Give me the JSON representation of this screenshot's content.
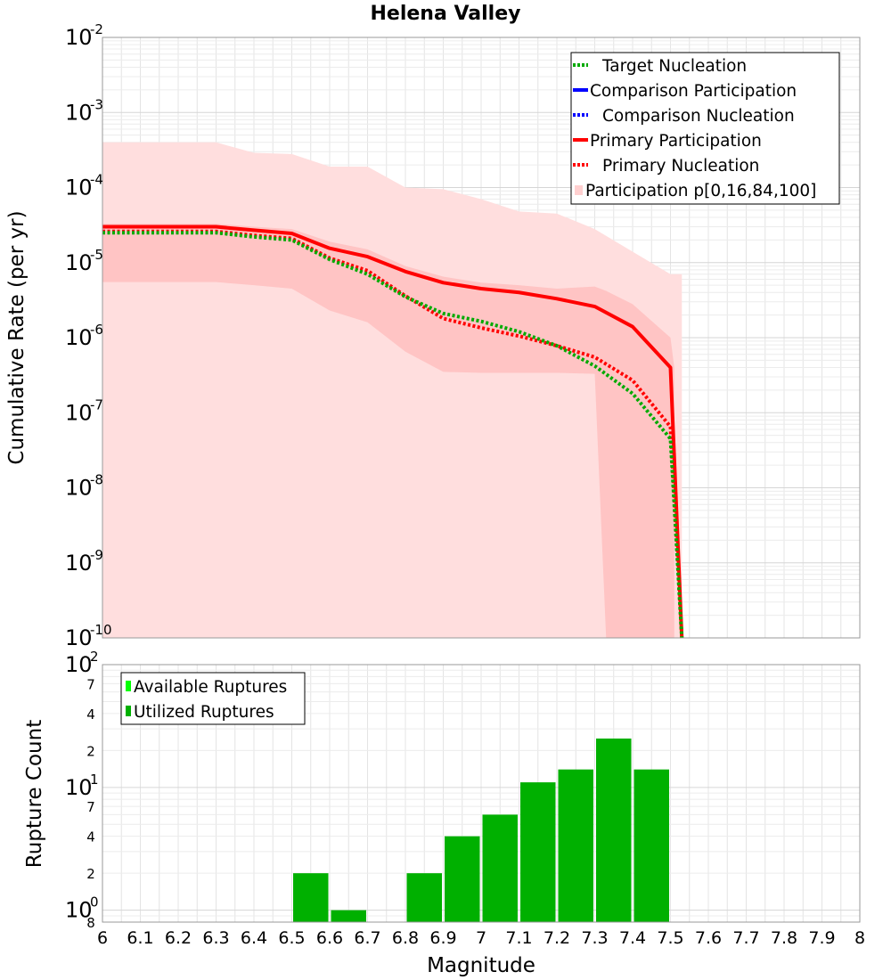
{
  "chart_data": [
    {
      "type": "line",
      "title": "Helena Valley",
      "xlabel": "",
      "ylabel": "Cumulative Rate (per yr)",
      "yscale": "log",
      "xlim": [
        6,
        8
      ],
      "ylim": [
        1e-10,
        0.01
      ],
      "y_ticks": [
        {
          "base": "10",
          "exp": "-2"
        },
        {
          "base": "10",
          "exp": "-3"
        },
        {
          "base": "10",
          "exp": "-4"
        },
        {
          "base": "10",
          "exp": "-5"
        },
        {
          "base": "10",
          "exp": "-6"
        },
        {
          "base": "10",
          "exp": "-7"
        },
        {
          "base": "10",
          "exp": "-8"
        },
        {
          "base": "10",
          "exp": "-9"
        },
        {
          "base": "10",
          "exp": "-10"
        }
      ],
      "legend": [
        {
          "label": "Target Nucleation",
          "color": "#00aa00",
          "style": "dotted"
        },
        {
          "label": "Comparison Participation",
          "color": "#0000ff",
          "style": "solid"
        },
        {
          "label": "Comparison Nucleation",
          "color": "#0000ff",
          "style": "dotted"
        },
        {
          "label": "Primary Participation",
          "color": "#ff0000",
          "style": "solid"
        },
        {
          "label": "Primary Nucleation",
          "color": "#ff0000",
          "style": "dotted"
        },
        {
          "label": "Participation p[0,16,84,100]",
          "color": "#ffd0d0",
          "style": "fill"
        }
      ],
      "bands": [
        {
          "name": "Participation p[0,100]",
          "color": "#ffdede",
          "x": [
            6.0,
            6.3,
            6.4,
            6.5,
            6.6,
            6.7,
            6.8,
            6.9,
            7.0,
            7.1,
            7.2,
            7.3,
            7.4,
            7.5,
            7.53
          ],
          "upper": [
            0.0004,
            0.0004,
            0.00029,
            0.00028,
            0.00019,
            0.00019,
            0.0001,
            9.5e-05,
            7e-05,
            4.8e-05,
            4.5e-05,
            2.8e-05,
            1.4e-05,
            7e-06,
            7e-06
          ],
          "lower": [
            1e-10,
            1e-10,
            1e-10,
            1e-10,
            1e-10,
            1e-10,
            1e-10,
            1e-10,
            1e-10,
            1e-10,
            1e-10,
            1e-10,
            1e-10,
            1e-10,
            1e-10
          ]
        },
        {
          "name": "Participation p[16,84]",
          "color": "#ffc4c4",
          "x": [
            6.0,
            6.3,
            6.4,
            6.5,
            6.6,
            6.7,
            6.8,
            6.9,
            7.0,
            7.1,
            7.2,
            7.3,
            7.33,
            7.4,
            7.5,
            7.51
          ],
          "upper": [
            3.3e-05,
            3.3e-05,
            3e-05,
            2.8e-05,
            1.9e-05,
            1.5e-05,
            9e-06,
            6.5e-06,
            5.4e-06,
            5e-06,
            4.5e-06,
            4.8e-06,
            4.2e-06,
            2.8e-06,
            1e-06,
            4e-07
          ],
          "lower": [
            5.5e-06,
            5.5e-06,
            5e-06,
            4.5e-06,
            2.3e-06,
            1.6e-06,
            6.5e-07,
            3.5e-07,
            3.4e-07,
            3.4e-07,
            3.4e-07,
            3.3e-07,
            1e-10,
            1e-10,
            1e-10,
            1e-10
          ]
        }
      ],
      "series": [
        {
          "name": "Primary Participation",
          "color": "#ff0000",
          "style": "solid",
          "x": [
            6.0,
            6.3,
            6.4,
            6.5,
            6.6,
            6.7,
            6.8,
            6.9,
            7.0,
            7.1,
            7.2,
            7.3,
            7.4,
            7.5,
            7.53
          ],
          "y": [
            3e-05,
            3e-05,
            2.7e-05,
            2.45e-05,
            1.55e-05,
            1.2e-05,
            7.6e-06,
            5.4e-06,
            4.5e-06,
            4e-06,
            3.3e-06,
            2.6e-06,
            1.4e-06,
            4e-07,
            1e-10
          ]
        },
        {
          "name": "Primary Nucleation",
          "color": "#ff0000",
          "style": "dotted",
          "x": [
            6.0,
            6.3,
            6.4,
            6.5,
            6.6,
            6.7,
            6.8,
            6.9,
            7.0,
            7.1,
            7.2,
            7.3,
            7.4,
            7.5,
            7.53
          ],
          "y": [
            2.6e-05,
            2.6e-05,
            2.3e-05,
            2.1e-05,
            1.15e-05,
            7.8e-06,
            3.6e-06,
            1.8e-06,
            1.35e-06,
            1.05e-06,
            7.8e-07,
            5.5e-07,
            2.7e-07,
            6.5e-08,
            1e-10
          ]
        },
        {
          "name": "Target Nucleation",
          "color": "#00aa00",
          "style": "dotted",
          "x": [
            6.0,
            6.3,
            6.4,
            6.5,
            6.6,
            6.7,
            6.8,
            6.9,
            7.0,
            7.1,
            7.2,
            7.3,
            7.4,
            7.5,
            7.53
          ],
          "y": [
            2.5e-05,
            2.5e-05,
            2.2e-05,
            2e-05,
            1.1e-05,
            7e-06,
            3.5e-06,
            2.1e-06,
            1.65e-06,
            1.2e-06,
            7.8e-07,
            4.2e-07,
            1.8e-07,
            4.5e-08,
            1e-10
          ]
        }
      ]
    },
    {
      "type": "bar",
      "title": "",
      "xlabel": "Magnitude",
      "ylabel": "Rupture Count",
      "yscale": "log",
      "xlim": [
        6,
        8
      ],
      "ylim": [
        0.8,
        100
      ],
      "x_ticks": [
        "6",
        "6.1",
        "6.2",
        "6.3",
        "6.4",
        "6.5",
        "6.6",
        "6.7",
        "6.8",
        "6.9",
        "7",
        "7.1",
        "7.2",
        "7.3",
        "7.4",
        "7.5",
        "7.6",
        "7.7",
        "7.8",
        "7.9",
        "8"
      ],
      "y_major_ticks": [
        {
          "base": "10",
          "exp": "2"
        },
        {
          "base": "10",
          "exp": "1"
        },
        {
          "base": "10",
          "exp": "0"
        }
      ],
      "y_minor_ticks": [
        "7",
        "4",
        "2",
        "7",
        "4",
        "2",
        "8"
      ],
      "legend": [
        {
          "label": "Available Ruptures",
          "color": "#00ff00"
        },
        {
          "label": "Utilized Ruptures",
          "color": "#00b000"
        }
      ],
      "series": [
        {
          "name": "Utilized Ruptures",
          "color": "#00b000",
          "bin_width": 0.1,
          "x": [
            6.55,
            6.65,
            6.85,
            6.95,
            7.05,
            7.15,
            7.25,
            7.35,
            7.45
          ],
          "values": [
            2,
            1,
            2,
            4,
            6,
            11,
            14,
            25,
            14
          ]
        }
      ]
    }
  ]
}
